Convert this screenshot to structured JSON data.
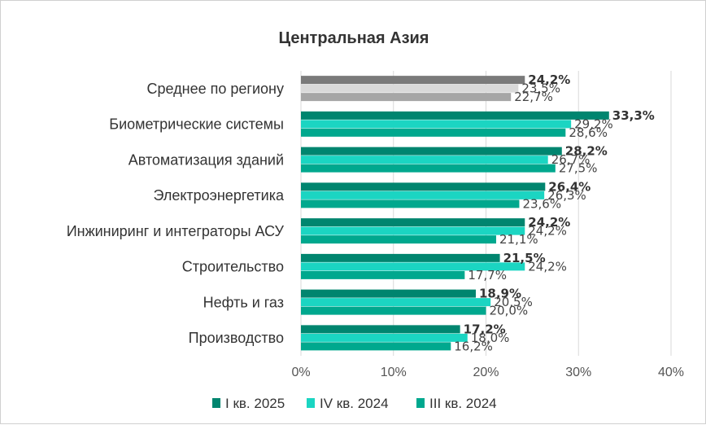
{
  "chart_data": {
    "type": "bar",
    "orientation": "horizontal",
    "title": "Центральная Азия",
    "categories": [
      "Среднее по региону",
      "Биометрические системы",
      "Автоматизация зданий",
      "Электроэнергетика",
      "Инжиниринг и интеграторы АСУ",
      "Строительство",
      "Нефть и газ",
      "Производство"
    ],
    "series": [
      {
        "name": "I кв. 2025",
        "values": [
          24.2,
          33.3,
          28.2,
          26.4,
          24.2,
          21.5,
          18.9,
          17.2
        ],
        "labels": [
          "24,2%",
          "33,3%",
          "28,2%",
          "26,4%",
          "24,2%",
          "21,5%",
          "18,9%",
          "17,2%"
        ]
      },
      {
        "name": "IV кв. 2024",
        "values": [
          23.5,
          29.2,
          26.7,
          26.3,
          24.2,
          24.2,
          20.5,
          18.0
        ],
        "labels": [
          "23,5%",
          "29,2%",
          "26,7%",
          "26,3%",
          "24,2%",
          "24,2%",
          "20,5%",
          "18,0%"
        ]
      },
      {
        "name": "III кв. 2024",
        "values": [
          22.7,
          28.6,
          27.5,
          23.6,
          21.1,
          17.7,
          20.0,
          16.2
        ],
        "labels": [
          "22,7%",
          "28,6%",
          "27,5%",
          "23,6%",
          "21,1%",
          "17,7%",
          "20,0%",
          "16,2%"
        ]
      }
    ],
    "xlim": [
      0,
      40
    ],
    "xticks": [
      0,
      10,
      20,
      30,
      40
    ],
    "xtick_labels": [
      "0%",
      "10%",
      "20%",
      "30%",
      "40%"
    ],
    "grid": true,
    "legend": "bottom",
    "colors": {
      "series": [
        "#00856f",
        "#1bd5c2",
        "#00a88e"
      ],
      "region_average": [
        "#7a7a7a",
        "#d9d9d9",
        "#a6a6a6"
      ]
    }
  }
}
